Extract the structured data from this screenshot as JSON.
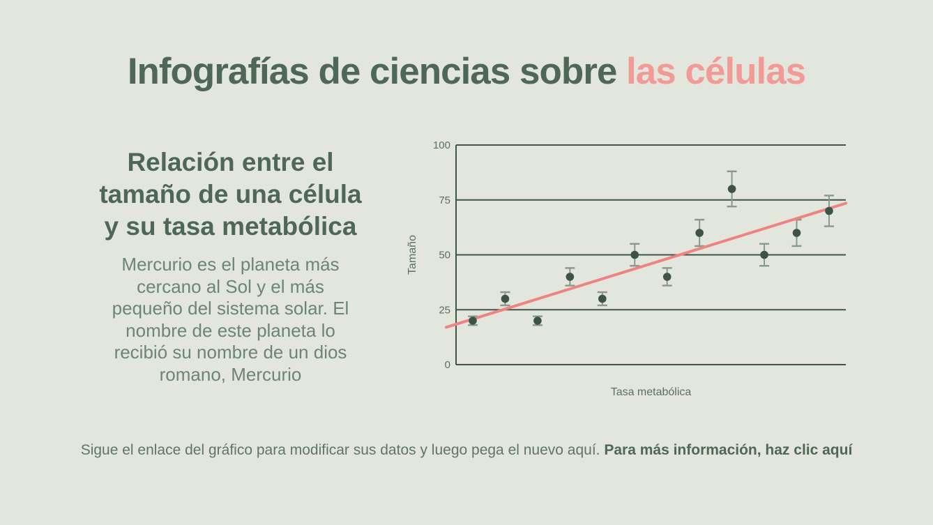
{
  "title": {
    "prefix": "Infografías de ciencias sobre ",
    "highlight": "las células"
  },
  "left_panel": {
    "heading_lines": [
      "Relación entre el",
      "tamaño de una célula",
      "y su tasa metabólica"
    ],
    "body_lines": [
      "Mercurio es el planeta más",
      "cercano al Sol y el más",
      "pequeño del sistema solar. El",
      "nombre de este planeta lo",
      "recibió su nombre de un dios",
      "romano, Mercurio"
    ]
  },
  "footer": {
    "text": "Sigue el enlace del gráfico para modificar sus datos y luego pega el nuevo aquí. ",
    "link_text": "Para más información, haz clic aquí"
  },
  "colors": {
    "background": "#e2e6dc",
    "heading_green": "#4f6757",
    "highlight_pink": "#f29a96",
    "body_green": "#6d8478",
    "footer_green": "#5f7568"
  },
  "chart_data": {
    "type": "scatter",
    "title": "",
    "xlabel": "Tasa metabólica",
    "ylabel": "Tamaño",
    "x": [
      1,
      2,
      3,
      4,
      5,
      6,
      7,
      8,
      9,
      10,
      11,
      12
    ],
    "values": [
      20,
      30,
      20,
      40,
      30,
      50,
      40,
      60,
      80,
      50,
      60,
      70
    ],
    "error_bars": [
      2,
      3,
      2,
      4,
      3,
      5,
      4,
      6,
      8,
      5,
      6,
      7
    ],
    "yticks": [
      0,
      25,
      50,
      75,
      100
    ],
    "ylim": [
      0,
      100
    ],
    "xticks_labeled": false,
    "grid": true,
    "legend": false,
    "trendline": {
      "x1": 0.18,
      "y1": 17,
      "x2": 12.52,
      "y2": 73.5
    },
    "colors": {
      "point": "#3e5347",
      "trend": "#ee8383",
      "grid": "#3f5546",
      "error_bar": "#8a988c",
      "tick_text": "#5b6f61"
    }
  }
}
